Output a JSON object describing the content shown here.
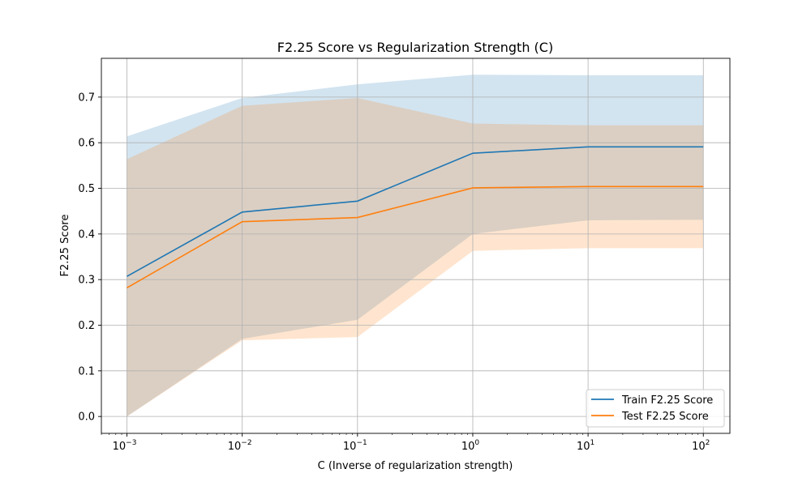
{
  "chart_data": {
    "type": "line",
    "title": "F2.25 Score vs Regularization Strength (C)",
    "xlabel": "C (Inverse of regularization strength)",
    "ylabel": "F2.25 Score",
    "x_scale": "log",
    "x": [
      0.001,
      0.01,
      0.1,
      1,
      10,
      100
    ],
    "x_ticks": [
      {
        "value": 0.001,
        "base": "10",
        "exp": "−3"
      },
      {
        "value": 0.01,
        "base": "10",
        "exp": "−2"
      },
      {
        "value": 0.1,
        "base": "10",
        "exp": "−1"
      },
      {
        "value": 1,
        "base": "10",
        "exp": "0"
      },
      {
        "value": 10,
        "base": "10",
        "exp": "1"
      },
      {
        "value": 100,
        "base": "10",
        "exp": "2"
      }
    ],
    "xlim": [
      0.0006,
      170
    ],
    "ylim": [
      -0.037,
      0.785
    ],
    "y_ticks": [
      "0.0",
      "0.1",
      "0.2",
      "0.3",
      "0.4",
      "0.5",
      "0.6",
      "0.7"
    ],
    "grid": true,
    "legend_position": "lower-right",
    "series": [
      {
        "name": "Train F2.25 Score",
        "color": "#1f77b4",
        "values": [
          0.307,
          0.448,
          0.472,
          0.577,
          0.591,
          0.591
        ],
        "band_upper": [
          0.614,
          0.698,
          0.728,
          0.749,
          0.748,
          0.748
        ],
        "band_lower": [
          0.0,
          0.17,
          0.212,
          0.4,
          0.43,
          0.431
        ]
      },
      {
        "name": "Test F2.25 Score",
        "color": "#ff7f0e",
        "values": [
          0.282,
          0.427,
          0.436,
          0.501,
          0.504,
          0.504
        ],
        "band_upper": [
          0.564,
          0.681,
          0.698,
          0.642,
          0.638,
          0.638
        ],
        "band_lower": [
          0.0,
          0.167,
          0.174,
          0.363,
          0.369,
          0.369
        ]
      }
    ]
  }
}
